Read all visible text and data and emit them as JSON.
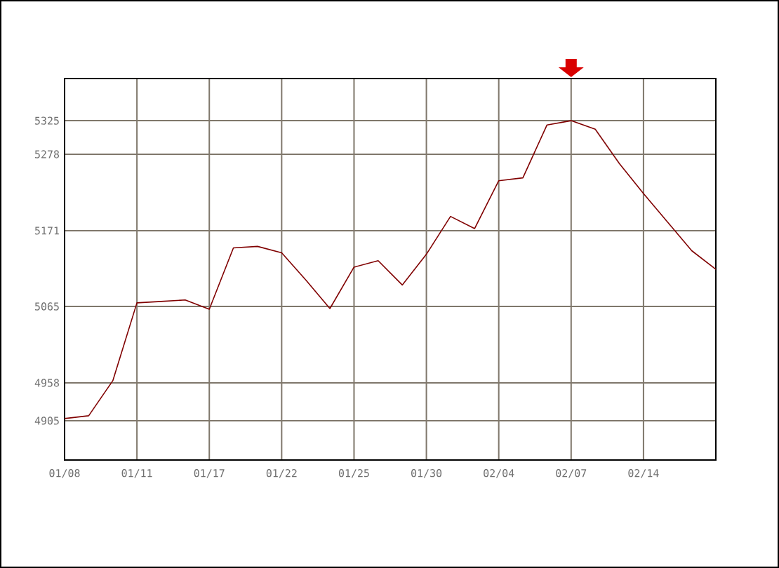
{
  "chart_data": {
    "type": "line",
    "categories": [
      "01/08",
      null,
      null,
      "01/11",
      null,
      null,
      "01/17",
      null,
      null,
      "01/22",
      null,
      null,
      "01/25",
      null,
      null,
      "01/30",
      null,
      null,
      "02/04",
      null,
      null,
      "02/07",
      null,
      null,
      "02/14",
      null,
      null,
      null
    ],
    "values": [
      4908,
      4912,
      4961,
      5070,
      5072,
      5074,
      5061,
      5147,
      5149,
      5140,
      5102,
      5062,
      5120,
      5129,
      5095,
      5138,
      5191,
      5174,
      5241,
      5245,
      5319,
      5325,
      5313,
      5265,
      5223,
      5183,
      5143,
      5117
    ],
    "color": "#800000",
    "ylim": [
      4850,
      5384
    ],
    "yticks": [
      4905,
      4958,
      5065,
      5171,
      5278,
      5325
    ],
    "grid": true,
    "marker": "none",
    "line_style": "solid"
  }
}
